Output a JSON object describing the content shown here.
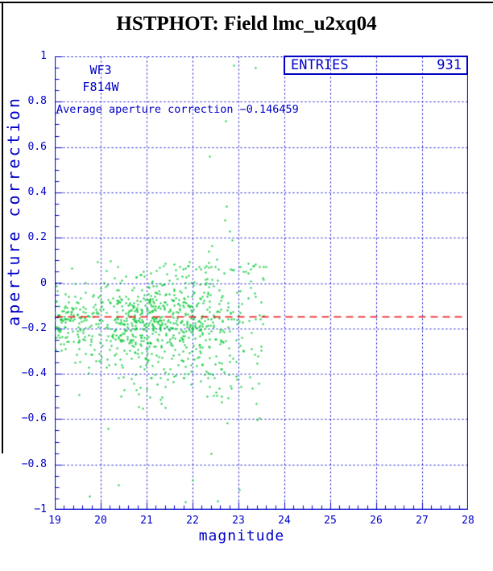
{
  "window": {
    "title": "HSTPHOT: Field lmc_u2xq04"
  },
  "colors": {
    "title_blue": "#0000d4",
    "axis_blue": "#0000c8",
    "point_green": "#00c832",
    "mean_line_red": "#e60000",
    "frame_black": "#000000",
    "background": "#ffffff"
  },
  "chart_data": {
    "type": "scatter",
    "title": "HSTPHOT: Field lmc_u2xq04",
    "xlabel": "magnitude",
    "ylabel": "aperture correction",
    "xlim": [
      19,
      28
    ],
    "ylim": [
      -1,
      1
    ],
    "grid": true,
    "grid_style": "dashed",
    "x_minor_step": 0.2,
    "y_minor_step": 0.05,
    "xtick_values": [
      19,
      20,
      21,
      22,
      23,
      24,
      25,
      26,
      27,
      28
    ],
    "xtick_labels": [
      "19",
      "20",
      "21",
      "22",
      "23",
      "24",
      "25",
      "26",
      "27",
      "28"
    ],
    "ytick_values": [
      1,
      0.8,
      0.6,
      0.4,
      0.2,
      0,
      -0.2,
      -0.4,
      -0.6,
      -0.8,
      -1
    ],
    "ytick_labels": [
      "1",
      "0.8",
      "0.6",
      "0.4",
      "0.2",
      "0",
      "−0.2",
      "−0.4",
      "−0.6",
      "−0.8",
      "−1"
    ],
    "detector_label": "WF3",
    "filter_label": "F814W",
    "entries_label": "ENTRIES",
    "entries_value": "931",
    "annotation": "Average aperture correction −0.146459",
    "average_aperture_correction": -0.146459,
    "mean_line": {
      "value": -0.146459,
      "dash": [
        9,
        6
      ],
      "width": 1.5
    },
    "point_size": 2,
    "n_points": 931,
    "outliers": [
      [
        22.9,
        0.96
      ],
      [
        23.37,
        0.95
      ],
      [
        22.72,
        0.715
      ],
      [
        22.37,
        0.56
      ],
      [
        22.74,
        0.34
      ],
      [
        22.7,
        0.28
      ],
      [
        22.8,
        0.23
      ],
      [
        22.86,
        0.19
      ],
      [
        22.42,
        0.165
      ],
      [
        22.35,
        0.14
      ],
      [
        22.52,
        0.105
      ],
      [
        23.21,
        0.087
      ],
      [
        22.4,
        0.073
      ],
      [
        22.89,
        0.059
      ],
      [
        21.63,
        0.059
      ],
      [
        22.28,
        0.048
      ],
      [
        21.77,
        0.03
      ],
      [
        23.16,
        0.05
      ],
      [
        19.75,
        -0.94
      ],
      [
        20.39,
        -0.89
      ],
      [
        21.84,
        -0.965
      ],
      [
        22.0,
        -0.87
      ],
      [
        22.54,
        -0.96
      ],
      [
        23.02,
        -0.91
      ],
      [
        22.4,
        -0.75
      ],
      [
        20.15,
        -0.64
      ]
    ],
    "band_model": {
      "seed": 7,
      "x_mix": [
        {
          "range": [
            19.0,
            22.9
          ],
          "w": 0.62
        },
        {
          "range": [
            20.3,
            22.7
          ],
          "w": 0.31
        },
        {
          "range": [
            22.9,
            23.6
          ],
          "w": 0.07
        }
      ],
      "y_mean": -0.155,
      "sigma_base": 0.055,
      "sigma_slope": 0.028,
      "skew_fraction": 0.1,
      "skew_range": [
        0.08,
        0.26
      ],
      "y_clamp": [
        -0.62,
        0.1
      ]
    }
  }
}
